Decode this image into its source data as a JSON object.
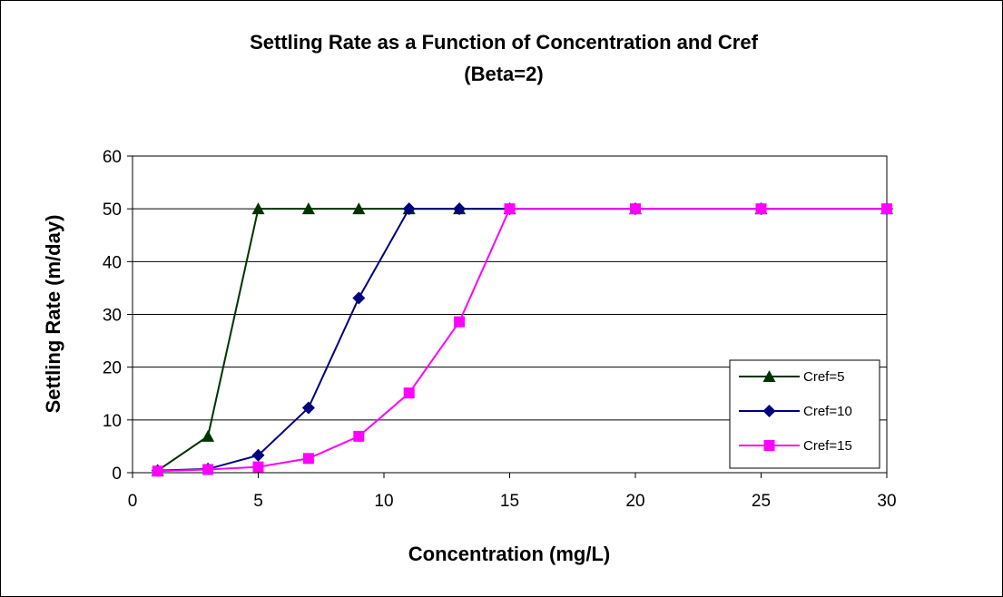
{
  "chart_data": {
    "type": "line",
    "title_lines": [
      "Settling Rate as a Function of Concentration and Cref",
      "(Beta=2)"
    ],
    "xlabel": "Concentration (mg/L)",
    "ylabel": "Settling Rate (m/day)",
    "xlim": [
      0,
      30
    ],
    "ylim": [
      0,
      60
    ],
    "xticks": [
      "0",
      "5",
      "10",
      "15",
      "20",
      "25",
      "30"
    ],
    "yticks": [
      "0",
      "10",
      "20",
      "30",
      "40",
      "50",
      "60"
    ],
    "grid": "horizontal",
    "plot_background": "#ffffff",
    "plot_border_color": "#000000",
    "gridline_color": "#000000",
    "legend_position": "bottom-right",
    "series": [
      {
        "name": "Cref=5",
        "color": "#003300",
        "marker": "triangle",
        "x": [
          1,
          3,
          5,
          7,
          9,
          11,
          13,
          15,
          20,
          25,
          30
        ],
        "y": [
          0.4,
          6.9,
          50,
          50,
          50,
          50,
          50,
          50,
          50,
          50,
          50
        ]
      },
      {
        "name": "Cref=10",
        "color": "#000080",
        "marker": "diamond",
        "x": [
          1,
          3,
          5,
          7,
          9,
          11,
          13,
          15,
          20,
          25,
          30
        ],
        "y": [
          0.4,
          0.7,
          3.3,
          12.3,
          33.1,
          50,
          50,
          50,
          50,
          50,
          50
        ]
      },
      {
        "name": "Cref=15",
        "color": "#ff00ff",
        "marker": "square",
        "x": [
          1,
          3,
          5,
          7,
          9,
          11,
          13,
          15,
          20,
          25,
          30
        ],
        "y": [
          0.3,
          0.6,
          1.1,
          2.7,
          6.9,
          15.1,
          28.6,
          50,
          50,
          50,
          50
        ]
      }
    ]
  }
}
